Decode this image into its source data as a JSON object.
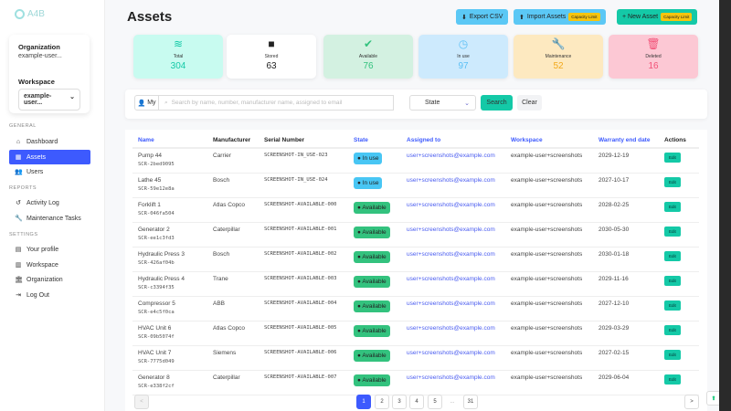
{
  "logo": "A4B",
  "sidebar": {
    "org_label": "Organization",
    "org_value": "example-user...",
    "ws_label": "Workspace",
    "ws_value": "example-user...",
    "sections": [
      "GENERAL",
      "REPORTS",
      "SETTINGS"
    ],
    "items": [
      {
        "label": "Dashboard",
        "icon": "home-icon"
      },
      {
        "label": "Assets",
        "icon": "assets-icon",
        "active": true
      },
      {
        "label": "Users",
        "icon": "users-icon"
      },
      {
        "label": "Activity Log",
        "icon": "history-icon"
      },
      {
        "label": "Maintenance Tasks",
        "icon": "wrench-icon"
      },
      {
        "label": "Your profile",
        "icon": "id-card-icon"
      },
      {
        "label": "Workspace",
        "icon": "building-icon"
      },
      {
        "label": "Organization",
        "icon": "bank-icon"
      },
      {
        "label": "Log Out",
        "icon": "logout-icon"
      }
    ]
  },
  "header": {
    "title": "Assets",
    "export": "Export CSV",
    "import": "Import Assets",
    "new": "+ New Asset",
    "capacity": "Capacity Limit"
  },
  "stats": [
    {
      "label": "Total",
      "value": "304",
      "color": "#14c9a7",
      "bg": "#c8fbf0",
      "icon": "layers-icon"
    },
    {
      "label": "Stored",
      "value": "63",
      "color": "#222",
      "bg": "#ffffff",
      "icon": "box-icon"
    },
    {
      "label": "Available",
      "value": "76",
      "color": "#33c27e",
      "bg": "#d3f1e1",
      "icon": "check-circle-icon"
    },
    {
      "label": "In use",
      "value": "97",
      "color": "#5bbff5",
      "bg": "#cdeafd",
      "icon": "clock-icon"
    },
    {
      "label": "Maintenance",
      "value": "52",
      "color": "#f2a91b",
      "bg": "#fde9c0",
      "icon": "wrench-icon"
    },
    {
      "label": "Deleted",
      "value": "16",
      "color": "#f25278",
      "bg": "#fcc8d4",
      "icon": "trash-icon"
    }
  ],
  "search": {
    "my": "My",
    "placeholder": "Search by name, number, manufacturer name, assigned to email",
    "state": "State",
    "search": "Search",
    "clear": "Clear"
  },
  "table": {
    "headers": [
      "Name",
      "Manufacturer",
      "Serial Number",
      "State",
      "Assigned to",
      "Workspace",
      "Warranty end date",
      "Actions"
    ],
    "edit": "Edit",
    "rows": [
      {
        "name": "Pump 44",
        "code": "SCR-2bed9095",
        "mfr": "Carrier",
        "serial": "SCREENSHOT-IN_USE-023",
        "state": "In use",
        "email": "user+screenshots@example.com",
        "ws": "example-user+screenshots",
        "date": "2029-12-19"
      },
      {
        "name": "Lathe 45",
        "code": "SCR-59e12e8a",
        "mfr": "Bosch",
        "serial": "SCREENSHOT-IN_USE-024",
        "state": "In use",
        "email": "user+screenshots@example.com",
        "ws": "example-user+screenshots",
        "date": "2027-10-17"
      },
      {
        "name": "Forklift 1",
        "code": "SCR-046fa504",
        "mfr": "Atlas Copco",
        "serial": "SCREENSHOT-AVAILABLE-000",
        "state": "Available",
        "email": "user+screenshots@example.com",
        "ws": "example-user+screenshots",
        "date": "2028-02-25"
      },
      {
        "name": "Generator 2",
        "code": "SCR-ee1c3fd3",
        "mfr": "Caterpillar",
        "serial": "SCREENSHOT-AVAILABLE-001",
        "state": "Available",
        "email": "user+screenshots@example.com",
        "ws": "example-user+screenshots",
        "date": "2030-05-30"
      },
      {
        "name": "Hydraulic Press 3",
        "code": "SCR-426af04b",
        "mfr": "Bosch",
        "serial": "SCREENSHOT-AVAILABLE-002",
        "state": "Available",
        "email": "user+screenshots@example.com",
        "ws": "example-user+screenshots",
        "date": "2030-01-18"
      },
      {
        "name": "Hydraulic Press 4",
        "code": "SCR-c3394f35",
        "mfr": "Trane",
        "serial": "SCREENSHOT-AVAILABLE-003",
        "state": "Available",
        "email": "user+screenshots@example.com",
        "ws": "example-user+screenshots",
        "date": "2029-11-16"
      },
      {
        "name": "Compressor 5",
        "code": "SCR-e4c5f0ca",
        "mfr": "ABB",
        "serial": "SCREENSHOT-AVAILABLE-004",
        "state": "Available",
        "email": "user+screenshots@example.com",
        "ws": "example-user+screenshots",
        "date": "2027-12-10"
      },
      {
        "name": "HVAC Unit 6",
        "code": "SCR-09b5074f",
        "mfr": "Atlas Copco",
        "serial": "SCREENSHOT-AVAILABLE-005",
        "state": "Available",
        "email": "user+screenshots@example.com",
        "ws": "example-user+screenshots",
        "date": "2029-03-29"
      },
      {
        "name": "HVAC Unit 7",
        "code": "SCR-7775d049",
        "mfr": "Siemens",
        "serial": "SCREENSHOT-AVAILABLE-006",
        "state": "Available",
        "email": "user+screenshots@example.com",
        "ws": "example-user+screenshots",
        "date": "2027-02-15"
      },
      {
        "name": "Generator 8",
        "code": "SCR-e338f2cf",
        "mfr": "Caterpillar",
        "serial": "SCREENSHOT-AVAILABLE-007",
        "state": "Available",
        "email": "user+screenshots@example.com",
        "ws": "example-user+screenshots",
        "date": "2029-06-04"
      }
    ]
  },
  "pagination": {
    "prev": "<",
    "next": ">",
    "pages": [
      "1",
      "2",
      "3",
      "4",
      "5",
      "...",
      "31"
    ],
    "current": "1"
  }
}
